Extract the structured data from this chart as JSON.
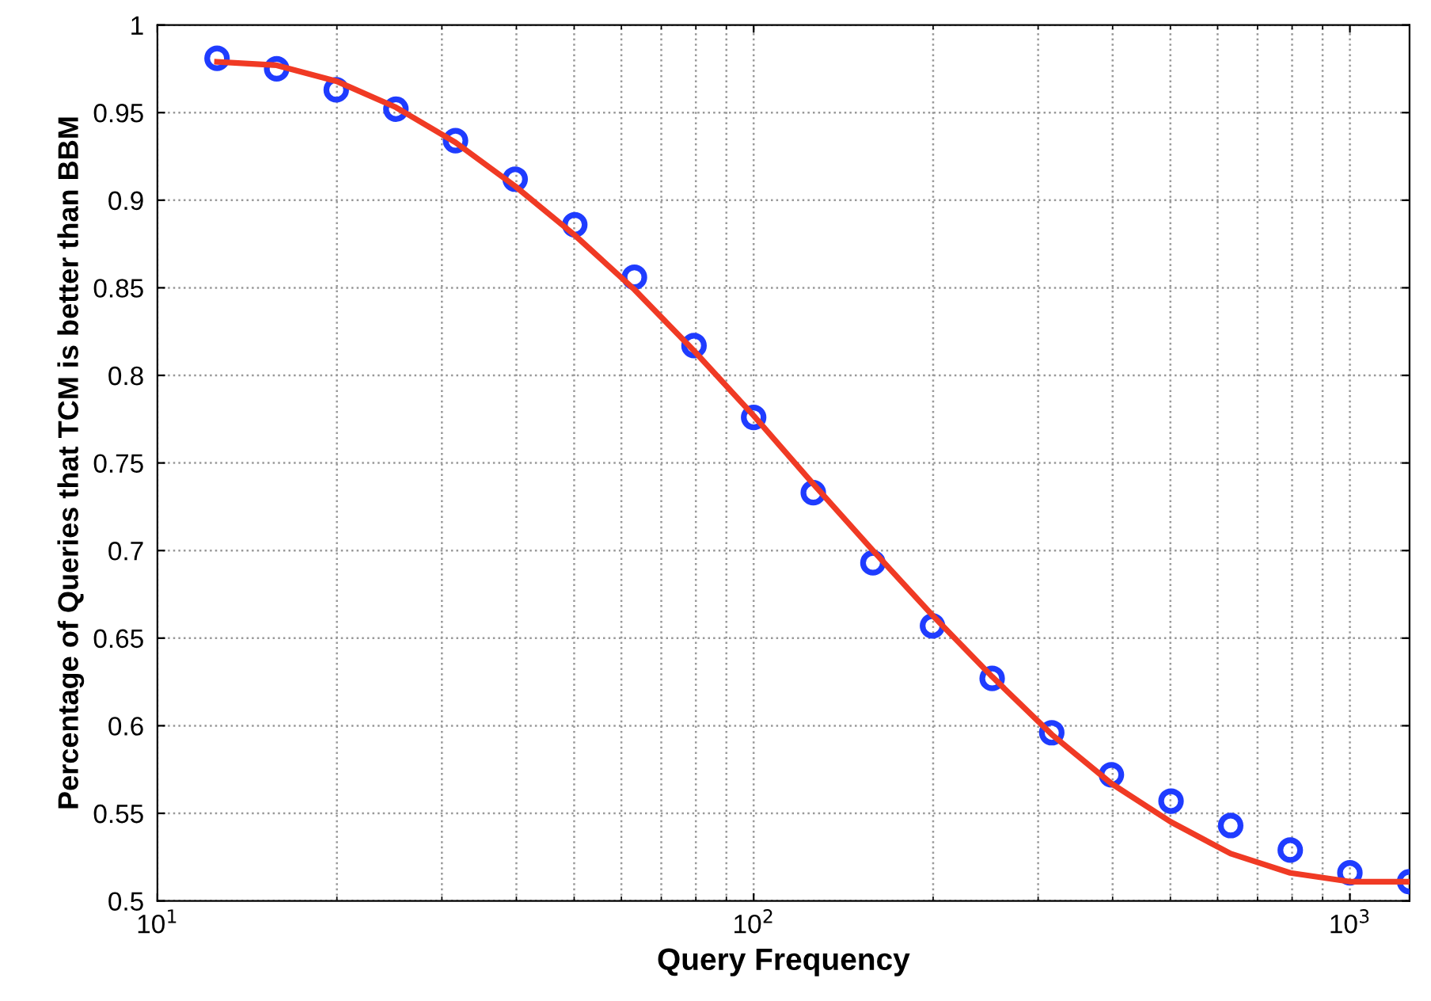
{
  "chart_data": {
    "type": "scatter",
    "xlabel": "Query Frequency",
    "ylabel": "Percentage of Queries that TCM is better than BBM",
    "log": "x",
    "grid": true,
    "xlim": [
      10,
      1259
    ],
    "ylim": [
      0.5,
      1
    ],
    "xticks": [
      {
        "value": 10,
        "label": "10$^{1}$"
      },
      {
        "value": 100,
        "label": "10$^{2}$"
      },
      {
        "value": 1000,
        "label": "10$^{3}$"
      }
    ],
    "yticks": [
      0.5,
      0.55,
      0.6,
      0.65,
      0.7,
      0.75,
      0.8,
      0.85,
      0.9,
      0.95,
      1
    ],
    "x": [
      12.59,
      15.85,
      19.95,
      25.12,
      31.62,
      39.81,
      50.12,
      63.1,
      79.43,
      100,
      125.9,
      158.5,
      199.5,
      251.2,
      316.2,
      398.1,
      501.2,
      631,
      794.3,
      1000,
      1259
    ],
    "series": [
      {
        "color": "#1f3cff",
        "marker": "circle",
        "values": [
          0.981,
          0.975,
          0.963,
          0.952,
          0.934,
          0.912,
          0.886,
          0.856,
          0.817,
          0.776,
          0.733,
          0.693,
          0.657,
          0.627,
          0.596,
          0.572,
          0.557,
          0.543,
          0.529,
          0.516,
          0.511
        ]
      },
      {
        "type": "line",
        "color": "#f03a24",
        "line_style": "solid",
        "marker": "none",
        "values": [
          0.979,
          0.977,
          0.968,
          0.953,
          0.933,
          0.908,
          0.88,
          0.849,
          0.814,
          0.777,
          0.738,
          0.7,
          0.663,
          0.628,
          0.595,
          0.567,
          0.545,
          0.527,
          0.516,
          0.511,
          0.511
        ]
      }
    ]
  }
}
